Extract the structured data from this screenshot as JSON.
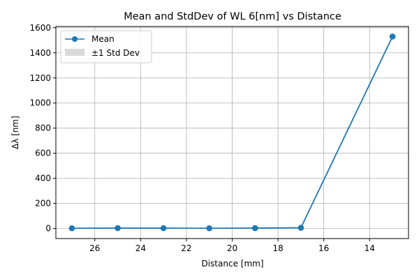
{
  "chart_data": {
    "type": "line",
    "title": "Mean and StdDev of WL 6[nm] vs Distance",
    "xlabel": "Distance [mm]",
    "ylabel": "Δλ [nm]",
    "x_inverted": true,
    "xlim": [
      27.7,
      12.3
    ],
    "ylim": [
      -80,
      1610
    ],
    "xticks": [
      26,
      24,
      22,
      20,
      18,
      16,
      14
    ],
    "yticks": [
      0,
      200,
      400,
      600,
      800,
      1000,
      1200,
      1400,
      1600
    ],
    "grid": true,
    "legend_position": "top-left",
    "series": [
      {
        "name": "Mean",
        "color": "#1f77b4",
        "marker": "circle",
        "x": [
          27,
          25,
          23,
          21,
          19,
          17,
          13
        ],
        "y": [
          2,
          3,
          3,
          2,
          3,
          6,
          1530
        ]
      }
    ],
    "bands": [
      {
        "name": "±1 Std Dev",
        "color": "#d3d3d3",
        "x": [
          27,
          25,
          23,
          21,
          19,
          17,
          13
        ],
        "lower": [
          2,
          3,
          3,
          2,
          3,
          6,
          1530
        ],
        "upper": [
          2,
          3,
          3,
          2,
          3,
          6,
          1530
        ]
      }
    ]
  }
}
